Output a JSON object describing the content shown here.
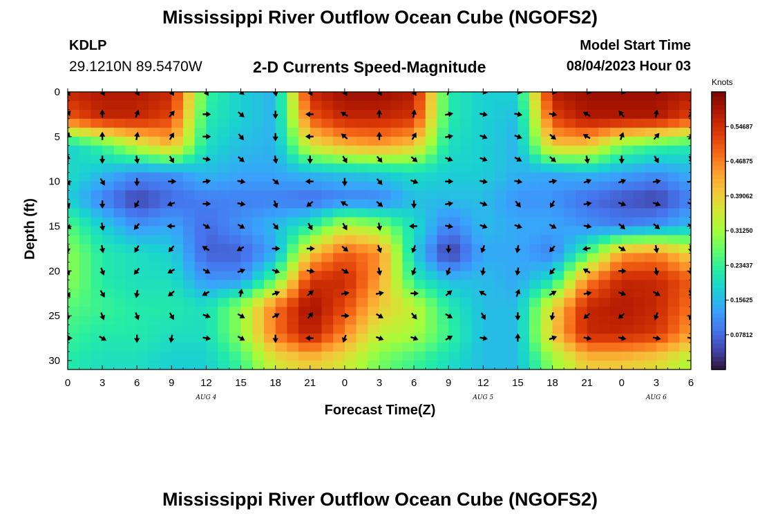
{
  "header": {
    "title": "Mississippi River Outflow Ocean Cube (NGOFS2)",
    "station": "KDLP",
    "coords": "29.1210N  89.5470W",
    "subtitle": "2-D Currents Speed-Magnitude",
    "model_start_label": "Model Start Time",
    "model_start_value": "08/04/2023 Hour 03"
  },
  "footer": {
    "title": "Mississippi River Outflow Ocean Cube (NGOFS2)"
  },
  "chart_data": {
    "type": "heatmap",
    "xlabel": "Forecast Time(Z)",
    "ylabel": "Depth (ft)",
    "x_tick_labels": [
      "0",
      "3",
      "6",
      "9",
      "12",
      "15",
      "18",
      "21",
      "0",
      "3",
      "6",
      "9",
      "12",
      "15",
      "18",
      "21",
      "0",
      "3",
      "6"
    ],
    "x_range_hours_from_aug4_00z": [
      0,
      54
    ],
    "day_labels": [
      {
        "label": "AUG 4",
        "at_tick_index": 4
      },
      {
        "label": "AUG 5",
        "at_tick_index": 12
      },
      {
        "label": "AUG 6",
        "at_tick_index": 17
      }
    ],
    "y_tick_labels": [
      "0",
      "5",
      "10",
      "15",
      "20",
      "25",
      "30"
    ],
    "ylim": [
      0,
      31
    ],
    "y_inverted": true,
    "colorbar": {
      "units": "Knots",
      "range": [
        0,
        0.625
      ],
      "tick_labels": [
        "0.07812",
        "0.15625",
        "0.23437",
        "0.31250",
        "0.39062",
        "0.46875",
        "0.54687"
      ],
      "tick_values": [
        0.078125,
        0.15625,
        0.234375,
        0.3125,
        0.390625,
        0.46875,
        0.546875
      ],
      "colors": [
        "#30123b",
        "#4145ab",
        "#4675ed",
        "#39a2fc",
        "#1bcfd4",
        "#24eca6",
        "#61fc6c",
        "#a4fc3b",
        "#d1e834",
        "#f3c63a",
        "#fe9b2d",
        "#f36315",
        "#d93806",
        "#b11901",
        "#7a0403"
      ]
    },
    "speed_field": {
      "hours": [
        0,
        3,
        6,
        9,
        12,
        15,
        18,
        21,
        24,
        27,
        30,
        33,
        36,
        39,
        42,
        45,
        48,
        51,
        54
      ],
      "depths_ft": [
        0,
        3,
        6,
        9,
        12,
        15,
        18,
        21,
        24,
        27,
        30
      ],
      "values_knots": [
        [
          0.56,
          0.58,
          0.58,
          0.56,
          0.24,
          0.18,
          0.15,
          0.56,
          0.6,
          0.6,
          0.58,
          0.22,
          0.18,
          0.18,
          0.58,
          0.6,
          0.6,
          0.6,
          0.58
        ],
        [
          0.5,
          0.56,
          0.56,
          0.52,
          0.22,
          0.18,
          0.15,
          0.5,
          0.56,
          0.56,
          0.54,
          0.22,
          0.18,
          0.16,
          0.52,
          0.58,
          0.58,
          0.58,
          0.52
        ],
        [
          0.18,
          0.24,
          0.34,
          0.42,
          0.2,
          0.16,
          0.15,
          0.36,
          0.42,
          0.44,
          0.4,
          0.2,
          0.18,
          0.15,
          0.4,
          0.4,
          0.28,
          0.24,
          0.22
        ],
        [
          0.2,
          0.16,
          0.12,
          0.12,
          0.16,
          0.14,
          0.14,
          0.16,
          0.17,
          0.18,
          0.2,
          0.18,
          0.18,
          0.15,
          0.14,
          0.16,
          0.14,
          0.12,
          0.15
        ],
        [
          0.18,
          0.1,
          0.04,
          0.08,
          0.1,
          0.1,
          0.1,
          0.08,
          0.1,
          0.1,
          0.16,
          0.16,
          0.16,
          0.12,
          0.12,
          0.08,
          0.06,
          0.04,
          0.1
        ],
        [
          0.26,
          0.18,
          0.12,
          0.14,
          0.08,
          0.12,
          0.16,
          0.22,
          0.34,
          0.3,
          0.2,
          0.1,
          0.16,
          0.14,
          0.14,
          0.12,
          0.1,
          0.12,
          0.16
        ],
        [
          0.3,
          0.22,
          0.2,
          0.18,
          0.07,
          0.07,
          0.14,
          0.4,
          0.5,
          0.46,
          0.18,
          0.03,
          0.14,
          0.14,
          0.1,
          0.24,
          0.44,
          0.46,
          0.38
        ],
        [
          0.3,
          0.22,
          0.2,
          0.2,
          0.12,
          0.12,
          0.26,
          0.54,
          0.56,
          0.44,
          0.22,
          0.16,
          0.16,
          0.14,
          0.2,
          0.46,
          0.56,
          0.56,
          0.5
        ],
        [
          0.26,
          0.24,
          0.22,
          0.22,
          0.2,
          0.3,
          0.48,
          0.6,
          0.52,
          0.4,
          0.34,
          0.22,
          0.16,
          0.16,
          0.38,
          0.56,
          0.58,
          0.56,
          0.48
        ],
        [
          0.24,
          0.22,
          0.22,
          0.2,
          0.2,
          0.3,
          0.48,
          0.58,
          0.46,
          0.34,
          0.32,
          0.24,
          0.16,
          0.16,
          0.4,
          0.56,
          0.56,
          0.54,
          0.44
        ],
        [
          0.22,
          0.2,
          0.2,
          0.18,
          0.18,
          0.24,
          0.36,
          0.4,
          0.36,
          0.28,
          0.24,
          0.2,
          0.16,
          0.16,
          0.3,
          0.4,
          0.4,
          0.38,
          0.32
        ]
      ]
    },
    "current_vectors": {
      "hours": [
        0,
        3,
        6,
        9,
        12,
        15,
        18,
        21,
        24,
        27,
        30,
        33,
        36,
        39,
        42,
        45,
        48,
        51,
        54
      ],
      "depths_ft": [
        0,
        2.5,
        5,
        7.5,
        10,
        12.5,
        15,
        17.5,
        20,
        22.5,
        25,
        27.5
      ],
      "direction_deg": [
        [
          150,
          150,
          150,
          150,
          150,
          130,
          170,
          150,
          150,
          150,
          150,
          20,
          100,
          100,
          100,
          100,
          100,
          100,
          100
        ],
        [
          40,
          0,
          20,
          40,
          90,
          130,
          180,
          270,
          300,
          0,
          10,
          80,
          100,
          100,
          100,
          300,
          320,
          10,
          40
        ],
        [
          20,
          0,
          10,
          30,
          90,
          140,
          180,
          270,
          310,
          0,
          30,
          80,
          110,
          110,
          130,
          300,
          20,
          40,
          40
        ],
        [
          0,
          180,
          170,
          150,
          100,
          130,
          170,
          180,
          150,
          140,
          130,
          110,
          110,
          120,
          130,
          170,
          180,
          150,
          150
        ],
        [
          150,
          150,
          180,
          90,
          80,
          100,
          130,
          270,
          180,
          140,
          110,
          90,
          100,
          100,
          80,
          70,
          70,
          80,
          80
        ],
        [
          160,
          180,
          210,
          250,
          90,
          100,
          160,
          230,
          300,
          130,
          180,
          80,
          110,
          140,
          210,
          80,
          110,
          110,
          110
        ],
        [
          130,
          170,
          220,
          270,
          120,
          120,
          140,
          150,
          150,
          170,
          270,
          100,
          110,
          110,
          120,
          100,
          130,
          130,
          130
        ],
        [
          180,
          170,
          210,
          220,
          300,
          240,
          90,
          90,
          130,
          160,
          200,
          180,
          200,
          190,
          220,
          260,
          120,
          170,
          170
        ],
        [
          160,
          160,
          220,
          240,
          120,
          70,
          110,
          100,
          120,
          170,
          200,
          200,
          190,
          190,
          220,
          300,
          90,
          170,
          170
        ],
        [
          150,
          150,
          190,
          230,
          240,
          10,
          70,
          50,
          80,
          80,
          90,
          50,
          300,
          20,
          60,
          80,
          110,
          120,
          150
        ],
        [
          180,
          160,
          160,
          150,
          110,
          120,
          60,
          40,
          90,
          120,
          140,
          120,
          150,
          180,
          190,
          230,
          230,
          200,
          200
        ],
        [
          90,
          120,
          180,
          190,
          100,
          120,
          180,
          270,
          200,
          110,
          110,
          60,
          100,
          0,
          70,
          100,
          100,
          100,
          100
        ]
      ]
    }
  }
}
